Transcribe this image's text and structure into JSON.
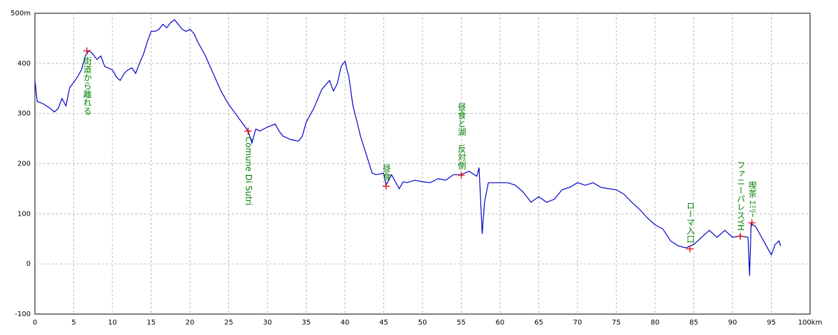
{
  "chart_data": {
    "type": "line",
    "xlim": [
      0,
      100
    ],
    "xticks": [
      0,
      5,
      10,
      15,
      20,
      25,
      30,
      35,
      40,
      45,
      50,
      55,
      60,
      65,
      70,
      75,
      80,
      85,
      90,
      95,
      {
        "value": 100,
        "label": "100km"
      }
    ],
    "ylim": [
      -100,
      500
    ],
    "yticks": [
      -100,
      0,
      100,
      200,
      300,
      400,
      {
        "value": 500,
        "label": "500m"
      }
    ],
    "grid": true,
    "color": "#0000cc",
    "x": [
      0,
      0.3,
      1,
      2,
      2.5,
      3,
      3.5,
      4,
      4.5,
      5,
      5.5,
      6,
      6.5,
      7,
      7.5,
      8,
      8.5,
      9,
      10,
      10.5,
      11,
      11.5,
      12,
      12.5,
      13,
      13.5,
      14,
      14.5,
      15,
      15.5,
      16,
      16.5,
      17,
      17.5,
      18,
      18.5,
      19,
      19.5,
      20,
      20.5,
      21,
      22,
      23,
      24,
      25,
      26,
      27,
      27.5,
      28,
      28.5,
      29,
      30,
      31,
      31.5,
      32,
      33,
      34,
      34.5,
      35,
      36,
      37,
      38,
      38.5,
      39,
      39.5,
      40,
      40.5,
      41,
      42,
      43,
      43.5,
      44,
      45,
      45.3,
      46,
      47,
      47.5,
      48,
      49,
      50,
      51,
      52,
      53,
      54,
      55,
      56,
      57,
      57.3,
      57.7,
      58,
      58.5,
      59,
      60,
      61,
      62,
      63,
      64,
      65,
      66,
      67,
      68,
      69,
      70,
      71,
      72,
      73,
      74,
      75,
      76,
      77,
      78,
      79,
      80,
      81,
      82,
      83,
      84,
      85,
      86,
      87,
      88,
      89,
      90,
      91,
      92,
      92.2,
      92.4,
      93,
      94,
      95,
      95.5,
      96,
      96.2
    ],
    "y": [
      366,
      324,
      320,
      310,
      303,
      310,
      330,
      315,
      352,
      362,
      373,
      387,
      415,
      426,
      418,
      408,
      415,
      394,
      387,
      373,
      366,
      380,
      387,
      391,
      380,
      401,
      418,
      443,
      464,
      464,
      468,
      478,
      471,
      481,
      487,
      478,
      468,
      464,
      468,
      460,
      443,
      415,
      380,
      345,
      318,
      297,
      276,
      265,
      241,
      269,
      265,
      273,
      279,
      265,
      255,
      248,
      245,
      255,
      283,
      311,
      348,
      366,
      345,
      359,
      394,
      404,
      373,
      318,
      255,
      206,
      181,
      178,
      181,
      157,
      178,
      150,
      164,
      162,
      167,
      164,
      162,
      170,
      167,
      178,
      178,
      185,
      175,
      192,
      60,
      123,
      162,
      162,
      162,
      162,
      157,
      143,
      123,
      134,
      123,
      129,
      148,
      153,
      162,
      157,
      162,
      153,
      150,
      148,
      139,
      123,
      109,
      92,
      78,
      70,
      46,
      36,
      32,
      39,
      53,
      67,
      53,
      67,
      53,
      56,
      53,
      -24,
      81,
      74,
      46,
      18,
      39,
      46,
      36
    ],
    "marker_color": "#e00000",
    "annotation_color": "#008000",
    "annotations": [
      {
        "x": 6.7,
        "y": 425,
        "text": "街道から離れる"
      },
      {
        "x": 27.5,
        "y": 265,
        "text": "Comune Di Sutri"
      },
      {
        "x": 45.3,
        "y": 155,
        "text": "昼食"
      },
      {
        "x": 55.0,
        "y": 177,
        "text": "昼食と湖　反対側"
      },
      {
        "x": 84.5,
        "y": 30,
        "text": "ローマ入口"
      },
      {
        "x": 91.0,
        "y": 55,
        "text": "ファニーパレスYH"
      },
      {
        "x": 92.5,
        "y": 82,
        "text": "喫茶 ｴﾐﾘｰ"
      }
    ]
  }
}
